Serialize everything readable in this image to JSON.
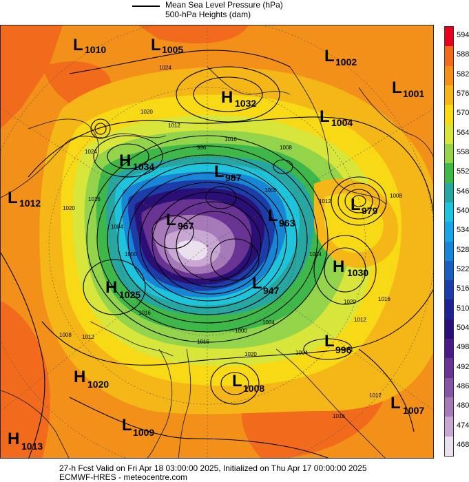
{
  "legend": {
    "line1": "Mean Sea Level Pressure (hPa)",
    "line2": "500-hPa Heights (dam)"
  },
  "colorbar": {
    "labels": [
      "594",
      "588",
      "582",
      "576",
      "570",
      "564",
      "558",
      "552",
      "546",
      "540",
      "534",
      "528",
      "522",
      "516",
      "510",
      "504",
      "498",
      "492",
      "486",
      "480",
      "474",
      "468"
    ],
    "colors": [
      "#e8001c",
      "#f26a1b",
      "#f39019",
      "#f5b617",
      "#f7d916",
      "#d8e53a",
      "#93d44a",
      "#3fb84a",
      "#27a7a2",
      "#1ec4dc",
      "#19a6e6",
      "#1886d6",
      "#1a5fc0",
      "#1c3da8",
      "#1d2290",
      "#2a0f77",
      "#4a1a86",
      "#693394",
      "#8755a6",
      "#a679b8",
      "#c8a7d2",
      "#ebe1ee"
    ]
  },
  "centers": [
    {
      "letter": "L",
      "value": "1010"
    },
    {
      "letter": "L",
      "value": "1005"
    },
    {
      "letter": "L",
      "value": "1002"
    },
    {
      "letter": "L",
      "value": "1001"
    },
    {
      "letter": "H",
      "value": "1032"
    },
    {
      "letter": "L",
      "value": "1004"
    },
    {
      "letter": "H",
      "value": "1034"
    },
    {
      "letter": "L",
      "value": "1012"
    },
    {
      "letter": "L",
      "value": "987"
    },
    {
      "letter": "L",
      "value": "979"
    },
    {
      "letter": "L",
      "value": "967"
    },
    {
      "letter": "L",
      "value": "963"
    },
    {
      "letter": "H",
      "value": "1030"
    },
    {
      "letter": "H",
      "value": "1025"
    },
    {
      "letter": "L",
      "value": "947"
    },
    {
      "letter": "L",
      "value": "996"
    },
    {
      "letter": "H",
      "value": "1020"
    },
    {
      "letter": "L",
      "value": "1008"
    },
    {
      "letter": "L",
      "value": "1007"
    },
    {
      "letter": "L",
      "value": "1009"
    },
    {
      "letter": "H",
      "value": "1013"
    }
  ],
  "isobar_labels": [
    "1024",
    "1020",
    "1012",
    "1016",
    "1024",
    "996",
    "1008",
    "1000",
    "1012",
    "1008",
    "1020",
    "1016",
    "1004",
    "1000",
    "1024",
    "1016",
    "1012",
    "1020",
    "1016",
    "1012",
    "1008",
    "1004",
    "1000",
    "1004",
    "1016",
    "1020",
    "1012",
    "1016"
  ],
  "footer": {
    "line1": "27-h Fcst Valid on Fri Apr 18 03:00:00 2025, Initialized on Thu Apr 17 00:00:00 2025",
    "line2": "ECMWF-HRES  - meteocentre.com"
  }
}
